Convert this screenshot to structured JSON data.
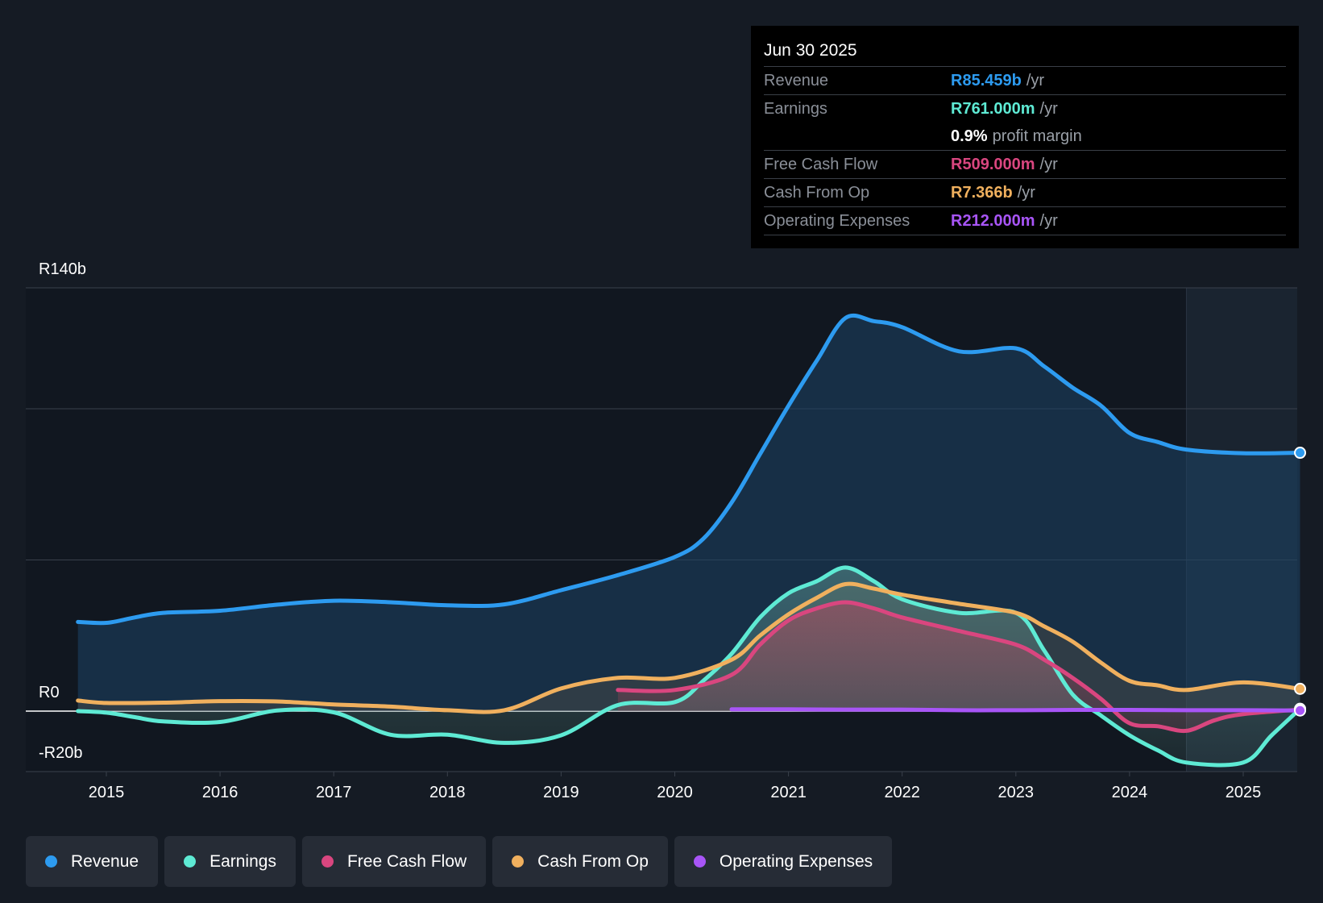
{
  "tooltip": {
    "date": "Jun 30 2025",
    "rows": [
      {
        "label": "Revenue",
        "value": "R85.459b",
        "unit": "/yr",
        "color": "#2d9bf0"
      },
      {
        "label": "Earnings",
        "value": "R761.000m",
        "unit": "/yr",
        "color": "#5eead4"
      },
      {
        "label": "Free Cash Flow",
        "value": "R509.000m",
        "unit": "/yr",
        "color": "#d9467f"
      },
      {
        "label": "Cash From Op",
        "value": "R7.366b",
        "unit": "/yr",
        "color": "#f0b05e"
      },
      {
        "label": "Operating Expenses",
        "value": "R212.000m",
        "unit": "/yr",
        "color": "#a855f7"
      }
    ],
    "margin": {
      "value": "0.9%",
      "text": "profit margin"
    }
  },
  "legend": [
    {
      "label": "Revenue",
      "color": "#2d9bf0"
    },
    {
      "label": "Earnings",
      "color": "#5eead4"
    },
    {
      "label": "Free Cash Flow",
      "color": "#d9467f"
    },
    {
      "label": "Cash From Op",
      "color": "#f0b05e"
    },
    {
      "label": "Operating Expenses",
      "color": "#a855f7"
    }
  ],
  "chart_data": {
    "type": "area",
    "currency": "ZAR",
    "unit": "billions",
    "y_labels": [
      "R140b",
      "R0",
      "-R20b"
    ],
    "ylim": [
      -20,
      140
    ],
    "gridlines": [
      140,
      100,
      50,
      0
    ],
    "xlim": [
      2014.75,
      2025.5
    ],
    "x_ticks": [
      "2015",
      "2016",
      "2017",
      "2018",
      "2019",
      "2020",
      "2021",
      "2022",
      "2023",
      "2024",
      "2025"
    ],
    "forecast_start": 2024.5,
    "series": [
      {
        "name": "Revenue",
        "color": "#2d9bf0",
        "points": [
          [
            2014.75,
            29.5
          ],
          [
            2015,
            29.2
          ],
          [
            2015.25,
            31
          ],
          [
            2015.5,
            32.5
          ],
          [
            2016,
            33.2
          ],
          [
            2016.5,
            35.2
          ],
          [
            2017,
            36.5
          ],
          [
            2017.5,
            36
          ],
          [
            2018,
            35
          ],
          [
            2018.5,
            35.3
          ],
          [
            2019,
            40
          ],
          [
            2019.5,
            45
          ],
          [
            2020,
            51
          ],
          [
            2020.25,
            57
          ],
          [
            2020.5,
            69
          ],
          [
            2020.75,
            85
          ],
          [
            2021,
            101
          ],
          [
            2021.25,
            116
          ],
          [
            2021.5,
            130
          ],
          [
            2021.75,
            129
          ],
          [
            2022,
            127
          ],
          [
            2022.5,
            119
          ],
          [
            2023,
            120
          ],
          [
            2023.25,
            114
          ],
          [
            2023.5,
            107
          ],
          [
            2023.75,
            101
          ],
          [
            2024,
            92
          ],
          [
            2024.25,
            89
          ],
          [
            2024.5,
            86.5
          ],
          [
            2025,
            85.3
          ],
          [
            2025.5,
            85.459
          ]
        ]
      },
      {
        "name": "Earnings",
        "color": "#5eead4",
        "points": [
          [
            2014.75,
            0
          ],
          [
            2015,
            -0.5
          ],
          [
            2015.25,
            -2
          ],
          [
            2015.5,
            -3.4
          ],
          [
            2016,
            -3.6
          ],
          [
            2016.5,
            0.2
          ],
          [
            2017,
            -0.4
          ],
          [
            2017.5,
            -7.8
          ],
          [
            2018,
            -7.8
          ],
          [
            2018.5,
            -10.5
          ],
          [
            2019,
            -8
          ],
          [
            2019.5,
            2
          ],
          [
            2020,
            3
          ],
          [
            2020.25,
            10
          ],
          [
            2020.5,
            19
          ],
          [
            2020.75,
            31
          ],
          [
            2021,
            39
          ],
          [
            2021.25,
            43
          ],
          [
            2021.5,
            47.5
          ],
          [
            2021.75,
            43
          ],
          [
            2022,
            37
          ],
          [
            2022.5,
            32.5
          ],
          [
            2023,
            32.5
          ],
          [
            2023.25,
            20
          ],
          [
            2023.5,
            5.5
          ],
          [
            2023.75,
            -1.5
          ],
          [
            2024,
            -8
          ],
          [
            2024.25,
            -13
          ],
          [
            2024.5,
            -17
          ],
          [
            2025,
            -17
          ],
          [
            2025.25,
            -8
          ],
          [
            2025.5,
            0.761
          ]
        ]
      },
      {
        "name": "Free Cash Flow",
        "color": "#d9467f",
        "points": [
          [
            2019.5,
            7
          ],
          [
            2020,
            7
          ],
          [
            2020.5,
            12
          ],
          [
            2020.75,
            22
          ],
          [
            2021,
            30
          ],
          [
            2021.25,
            34
          ],
          [
            2021.5,
            36
          ],
          [
            2021.75,
            34
          ],
          [
            2022,
            31
          ],
          [
            2022.5,
            26.5
          ],
          [
            2023,
            22
          ],
          [
            2023.25,
            17
          ],
          [
            2023.5,
            11
          ],
          [
            2023.75,
            4
          ],
          [
            2024,
            -4
          ],
          [
            2024.25,
            -5
          ],
          [
            2024.5,
            -6.5
          ],
          [
            2024.75,
            -3
          ],
          [
            2025,
            -1
          ],
          [
            2025.5,
            0.509
          ]
        ]
      },
      {
        "name": "Cash From Op",
        "color": "#f0b05e",
        "points": [
          [
            2014.75,
            3.5
          ],
          [
            2015,
            2.7
          ],
          [
            2015.5,
            2.8
          ],
          [
            2016,
            3.3
          ],
          [
            2016.5,
            3.2
          ],
          [
            2017,
            2.2
          ],
          [
            2017.5,
            1.5
          ],
          [
            2018,
            0.3
          ],
          [
            2018.5,
            0.3
          ],
          [
            2019,
            7.5
          ],
          [
            2019.5,
            11
          ],
          [
            2020,
            11
          ],
          [
            2020.5,
            17
          ],
          [
            2020.75,
            25
          ],
          [
            2021,
            32
          ],
          [
            2021.25,
            37.5
          ],
          [
            2021.5,
            42
          ],
          [
            2021.75,
            40.5
          ],
          [
            2022,
            38.5
          ],
          [
            2022.5,
            35.5
          ],
          [
            2023,
            32.5
          ],
          [
            2023.25,
            28
          ],
          [
            2023.5,
            23
          ],
          [
            2023.75,
            16
          ],
          [
            2024,
            10
          ],
          [
            2024.25,
            8.5
          ],
          [
            2024.5,
            7
          ],
          [
            2025,
            9.5
          ],
          [
            2025.5,
            7.366
          ]
        ]
      },
      {
        "name": "Operating Expenses",
        "color": "#a855f7",
        "points": [
          [
            2020.5,
            0.6
          ],
          [
            2021,
            0.6
          ],
          [
            2021.5,
            0.5
          ],
          [
            2022,
            0.5
          ],
          [
            2022.5,
            0.3
          ],
          [
            2023,
            0.3
          ],
          [
            2023.5,
            0.4
          ],
          [
            2024,
            0.4
          ],
          [
            2024.5,
            0.3
          ],
          [
            2025,
            0.3
          ],
          [
            2025.5,
            0.212
          ]
        ]
      }
    ]
  }
}
